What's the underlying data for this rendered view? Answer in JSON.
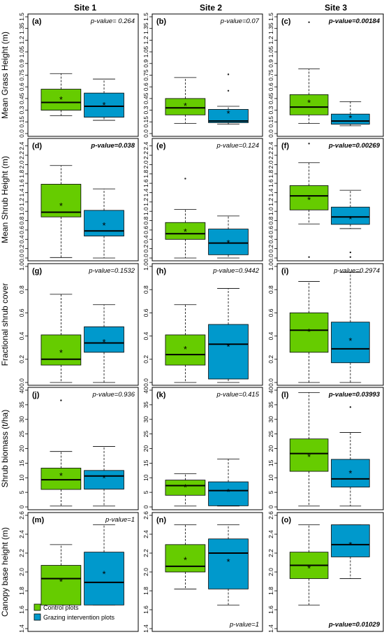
{
  "site_labels": [
    "Site 1",
    "Site 2",
    "Site 3"
  ],
  "row_ylabels": [
    "Mean Grass Height (m)",
    "Mean Shrub Height (m)",
    "Fractional shrub cover",
    "Shrub biomass (t/ha)",
    "Canopy base height (m)"
  ],
  "legend": {
    "control": "Control plots",
    "grazing": "Grazing intervention plots"
  },
  "colors": {
    "control": "#66CC00",
    "grazing": "#0099CC"
  },
  "chart_data": [
    {
      "type": "box",
      "row": 0,
      "ylim": [
        0,
        1.5
      ],
      "ticks": [
        0.0,
        0.15,
        0.3,
        0.45,
        0.6,
        0.75,
        0.9,
        1.05,
        1.2,
        1.35,
        1.5
      ],
      "tick_labels": [
        "0.0",
        "0.15",
        "0.3",
        "0.45",
        "0.6",
        "0.75",
        "0.9",
        "1.05",
        "1.2",
        "1.35",
        "1.5"
      ],
      "panels": [
        {
          "label": "(a)",
          "pvalue": "p-value= 0.264",
          "bold": false,
          "pv_pos": "top",
          "boxes": [
            {
              "group": "control",
              "min": 0.23,
              "q1": 0.3,
              "median": 0.4,
              "q3": 0.57,
              "max": 0.77,
              "mean": 0.44,
              "outliers": []
            },
            {
              "group": "grazing",
              "min": 0.17,
              "q1": 0.21,
              "median": 0.35,
              "q3": 0.52,
              "max": 0.7,
              "mean": 0.37,
              "outliers": []
            }
          ]
        },
        {
          "label": "(b)",
          "pvalue": "p-value=0.07",
          "bold": false,
          "pv_pos": "top",
          "boxes": [
            {
              "group": "control",
              "min": 0.13,
              "q1": 0.24,
              "median": 0.33,
              "q3": 0.45,
              "max": 0.72,
              "mean": 0.36,
              "outliers": []
            },
            {
              "group": "grazing",
              "min": 0.12,
              "q1": 0.14,
              "median": 0.16,
              "q3": 0.31,
              "max": 0.35,
              "mean": 0.26,
              "outliers": [
                0.55,
                0.76
              ]
            }
          ]
        },
        {
          "label": "(c)",
          "pvalue": "p-value=0.00184",
          "bold": true,
          "pv_pos": "top",
          "boxes": [
            {
              "group": "control",
              "min": 0.13,
              "q1": 0.24,
              "median": 0.34,
              "q3": 0.5,
              "max": 0.83,
              "mean": 0.4,
              "outliers": [
                1.43
              ]
            },
            {
              "group": "grazing",
              "min": 0.1,
              "q1": 0.12,
              "median": 0.16,
              "q3": 0.25,
              "max": 0.41,
              "mean": 0.2,
              "outliers": []
            }
          ]
        }
      ]
    },
    {
      "type": "box",
      "row": 1,
      "ylim": [
        0,
        2.5
      ],
      "ticks": [
        0.0,
        0.2,
        0.4,
        0.6,
        0.8,
        1.0,
        1.2,
        1.4,
        1.6,
        1.8,
        2.0,
        2.2,
        2.4
      ],
      "tick_labels": [
        "0.0",
        "0.2",
        "0.4",
        "0.6",
        "0.8",
        "1.0",
        "1.2",
        "1.4",
        "1.6",
        "1.8",
        "2.0",
        "2.2",
        "2.4"
      ],
      "panels": [
        {
          "label": "(d)",
          "pvalue": "p-value=0.038",
          "bold": true,
          "pv_pos": "top",
          "boxes": [
            {
              "group": "control",
              "min": 0.01,
              "q1": 0.88,
              "median": 0.98,
              "q3": 1.58,
              "max": 1.98,
              "mean": 1.12,
              "outliers": []
            },
            {
              "group": "grazing",
              "min": 0.0,
              "q1": 0.47,
              "median": 0.58,
              "q3": 1.02,
              "max": 1.48,
              "mean": 0.7,
              "outliers": []
            }
          ]
        },
        {
          "label": "(e)",
          "pvalue": "p-value=0.124",
          "bold": false,
          "pv_pos": "top",
          "boxes": [
            {
              "group": "control",
              "min": 0.0,
              "q1": 0.4,
              "median": 0.52,
              "q3": 0.76,
              "max": 1.04,
              "mean": 0.57,
              "outliers": [
                1.7
              ]
            },
            {
              "group": "grazing",
              "min": 0.0,
              "q1": 0.07,
              "median": 0.32,
              "q3": 0.62,
              "max": 0.9,
              "mean": 0.33,
              "outliers": []
            }
          ]
        },
        {
          "label": "(f)",
          "pvalue": "p-value=0.00269",
          "bold": true,
          "pv_pos": "top",
          "boxes": [
            {
              "group": "control",
              "min": 0.73,
              "q1": 1.03,
              "median": 1.33,
              "q3": 1.55,
              "max": 2.04,
              "mean": 1.25,
              "outliers": [
                2.45,
                0.02
              ]
            },
            {
              "group": "grazing",
              "min": 0.63,
              "q1": 0.72,
              "median": 0.88,
              "q3": 1.09,
              "max": 1.45,
              "mean": 0.84,
              "outliers": [
                0.12,
                0.02
              ]
            }
          ]
        }
      ]
    },
    {
      "type": "box",
      "row": 2,
      "ylim": [
        0,
        1.0
      ],
      "ticks": [
        0.0,
        0.2,
        0.4,
        0.6,
        0.8,
        1.0
      ],
      "tick_labels": [
        "0.0",
        "0.2",
        "0.4",
        "0.6",
        "0.8",
        "1.0"
      ],
      "panels": [
        {
          "label": "(g)",
          "pvalue": "p-value=0.1532",
          "bold": false,
          "pv_pos": "top",
          "boxes": [
            {
              "group": "control",
              "min": 0.0,
              "q1": 0.15,
              "median": 0.2,
              "q3": 0.41,
              "max": 0.76,
              "mean": 0.26,
              "outliers": []
            },
            {
              "group": "grazing",
              "min": 0.0,
              "q1": 0.26,
              "median": 0.34,
              "q3": 0.48,
              "max": 0.67,
              "mean": 0.35,
              "outliers": []
            }
          ]
        },
        {
          "label": "(h)",
          "pvalue": "p-value=0.9442",
          "bold": false,
          "pv_pos": "top",
          "boxes": [
            {
              "group": "control",
              "min": 0.0,
              "q1": 0.15,
              "median": 0.24,
              "q3": 0.41,
              "max": 0.67,
              "mean": 0.29,
              "outliers": []
            },
            {
              "group": "grazing",
              "min": 0.0,
              "q1": 0.03,
              "median": 0.33,
              "q3": 0.5,
              "max": 0.81,
              "mean": 0.31,
              "outliers": []
            }
          ]
        },
        {
          "label": "(i)",
          "pvalue": "p-value=0.2974",
          "bold": false,
          "pv_pos": "top",
          "boxes": [
            {
              "group": "control",
              "min": 0.0,
              "q1": 0.26,
              "median": 0.45,
              "q3": 0.6,
              "max": 0.87,
              "mean": 0.44,
              "outliers": []
            },
            {
              "group": "grazing",
              "min": 0.0,
              "q1": 0.17,
              "median": 0.29,
              "q3": 0.52,
              "max": 0.95,
              "mean": 0.36,
              "outliers": []
            }
          ]
        }
      ]
    },
    {
      "type": "box",
      "row": 3,
      "ylim": [
        0,
        40
      ],
      "ticks": [
        0,
        5,
        10,
        15,
        20,
        25,
        30,
        35,
        40
      ],
      "tick_labels": [
        "0",
        "5",
        "10",
        "15",
        "20",
        "25",
        "30",
        "35",
        "40"
      ],
      "panels": [
        {
          "label": "(j)",
          "pvalue": "p-value=0.936",
          "bold": false,
          "pv_pos": "top",
          "boxes": [
            {
              "group": "control",
              "min": 0.3,
              "q1": 6,
              "median": 9.3,
              "q3": 13.3,
              "max": 19,
              "mean": 10.8,
              "outliers": [
                36.5
              ]
            },
            {
              "group": "grazing",
              "min": 0.3,
              "q1": 6.1,
              "median": 10.6,
              "q3": 12.5,
              "max": 20.7,
              "mean": 10,
              "outliers": []
            }
          ]
        },
        {
          "label": "(k)",
          "pvalue": "p-value=0.415",
          "bold": false,
          "pv_pos": "top",
          "boxes": [
            {
              "group": "control",
              "min": 0.3,
              "q1": 4,
              "median": 7.3,
              "q3": 9.2,
              "max": 11.4,
              "mean": 6.8,
              "outliers": []
            },
            {
              "group": "grazing",
              "min": 0.3,
              "q1": 0.4,
              "median": 5.6,
              "q3": 8.6,
              "max": 16.4,
              "mean": 5.3,
              "outliers": []
            }
          ]
        },
        {
          "label": "(l)",
          "pvalue": "p-value=0.03993",
          "bold": true,
          "pv_pos": "top",
          "boxes": [
            {
              "group": "control",
              "min": 0.3,
              "q1": 12.2,
              "median": 18.3,
              "q3": 23.3,
              "max": 39.2,
              "mean": 17.3,
              "outliers": []
            },
            {
              "group": "grazing",
              "min": 0.3,
              "q1": 6.8,
              "median": 9.6,
              "q3": 16.3,
              "max": 25.5,
              "mean": 11.6,
              "outliers": [
                34.2
              ]
            }
          ]
        }
      ]
    },
    {
      "type": "box",
      "row": 4,
      "ylim": [
        1.4,
        2.6
      ],
      "ticks": [
        1.4,
        1.6,
        1.8,
        2.0,
        2.2,
        2.4,
        2.6
      ],
      "tick_labels": [
        "1.4",
        "1.6",
        "1.8",
        "2.0",
        "2.2",
        "2.4",
        "2.6"
      ],
      "panels": [
        {
          "label": "(m)",
          "pvalue": "p-value=1",
          "bold": false,
          "pv_pos": "top",
          "boxes": [
            {
              "group": "control",
              "min": 1.65,
              "q1": 1.65,
              "median": 1.93,
              "q3": 2.07,
              "max": 2.29,
              "mean": 1.9,
              "outliers": []
            },
            {
              "group": "grazing",
              "min": 1.65,
              "q1": 1.65,
              "median": 1.89,
              "q3": 2.21,
              "max": 2.5,
              "mean": 1.98,
              "outliers": []
            }
          ]
        },
        {
          "label": "(n)",
          "pvalue": "p-value=1",
          "bold": false,
          "pv_pos": "bottom",
          "boxes": [
            {
              "group": "control",
              "min": 1.82,
              "q1": 2.0,
              "median": 2.06,
              "q3": 2.29,
              "max": 2.5,
              "mean": 2.13,
              "outliers": []
            },
            {
              "group": "grazing",
              "min": 1.65,
              "q1": 1.82,
              "median": 2.2,
              "q3": 2.35,
              "max": 2.5,
              "mean": 2.11,
              "outliers": []
            }
          ]
        },
        {
          "label": "(o)",
          "pvalue": "p-value=0.01029",
          "bold": true,
          "pv_pos": "bottom",
          "boxes": [
            {
              "group": "control",
              "min": 1.65,
              "q1": 1.93,
              "median": 2.07,
              "q3": 2.21,
              "max": 2.5,
              "mean": 2.04,
              "outliers": []
            },
            {
              "group": "grazing",
              "min": 1.93,
              "q1": 2.16,
              "median": 2.29,
              "q3": 2.5,
              "max": 2.5,
              "mean": 2.29,
              "outliers": []
            }
          ]
        }
      ]
    }
  ]
}
